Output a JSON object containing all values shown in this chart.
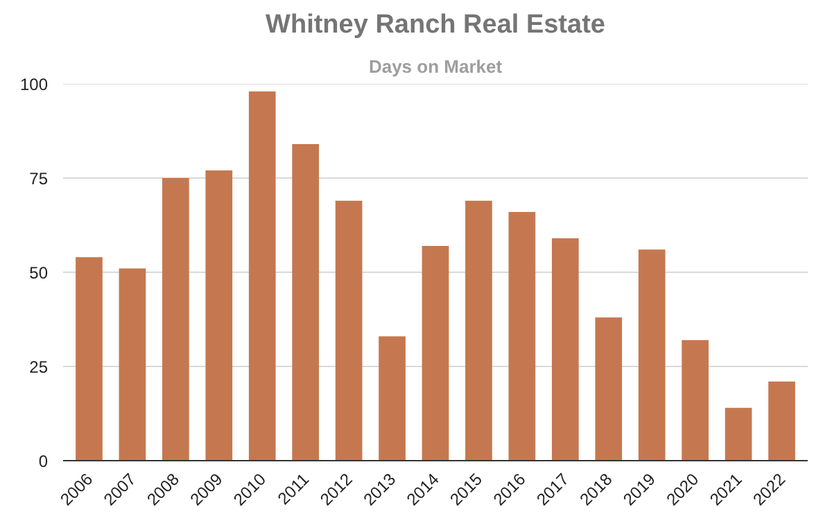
{
  "chart_data": {
    "type": "bar",
    "title": "Whitney Ranch Real Estate",
    "subtitle": "Days on Market",
    "categories": [
      "2006",
      "2007",
      "2008",
      "2009",
      "2010",
      "2011",
      "2012",
      "2013",
      "2014",
      "2015",
      "2016",
      "2017",
      "2018",
      "2019",
      "2020",
      "2021",
      "2022"
    ],
    "values": [
      54,
      51,
      75,
      77,
      98,
      84,
      69,
      33,
      57,
      69,
      66,
      59,
      38,
      56,
      32,
      14,
      21
    ],
    "color": "#c5784f",
    "ylim": [
      0,
      100
    ],
    "yticks": [
      0,
      25,
      50,
      75,
      100
    ],
    "grid": "y"
  }
}
